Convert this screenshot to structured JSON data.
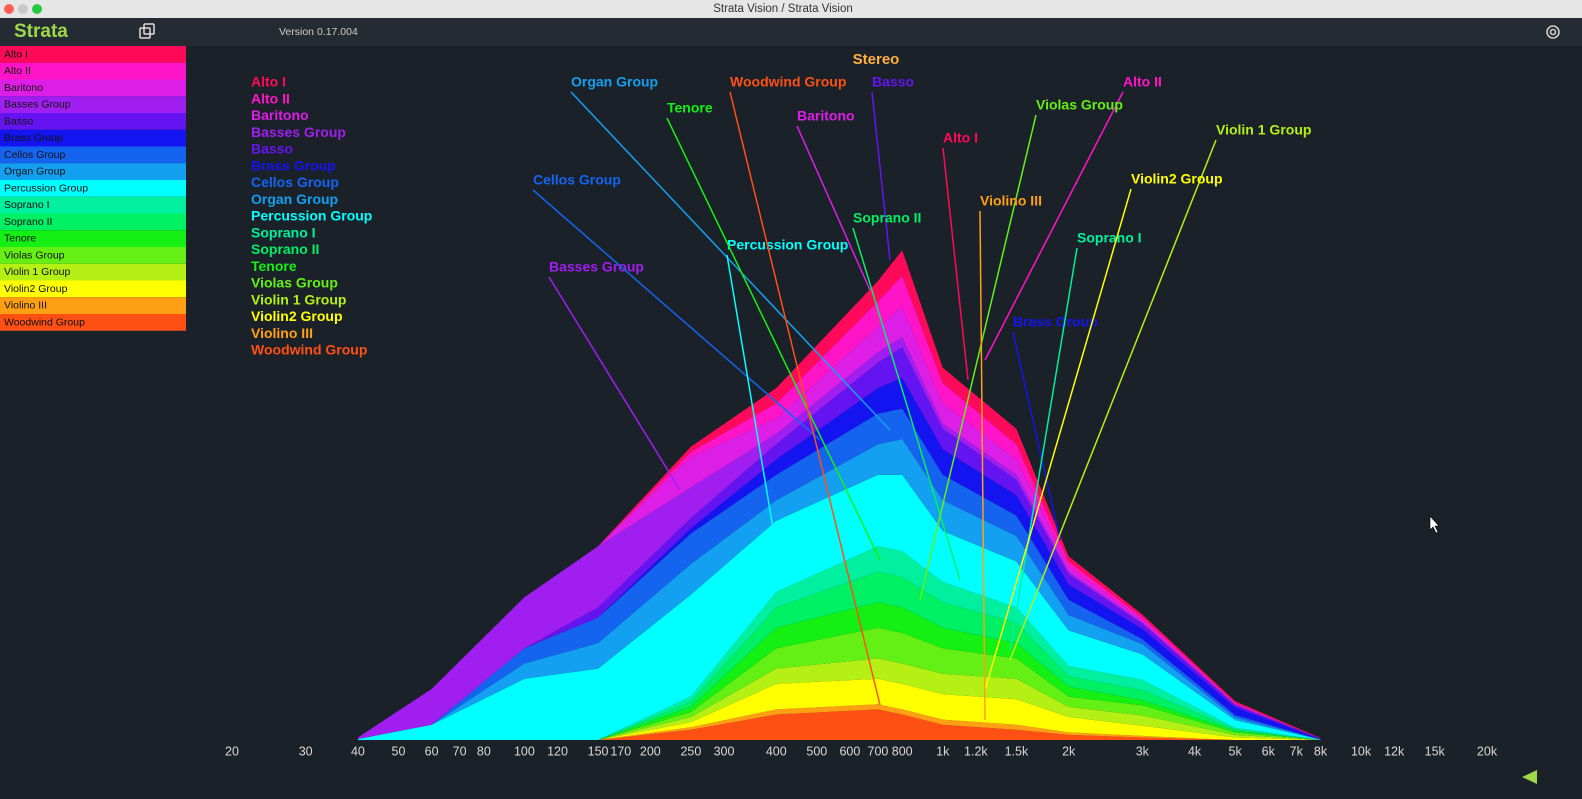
{
  "window_title": "Strata Vision / Strata Vision",
  "app_name": "Strata",
  "version": "Version 0.17.004",
  "chart_data": {
    "type": "stacked-area",
    "title": "Stereo",
    "log_x": true,
    "x": [
      40,
      60,
      100,
      150,
      250,
      400,
      700,
      800,
      1000,
      1500,
      2000,
      3000,
      5000,
      8000
    ],
    "xlim": [
      20,
      20000
    ],
    "xticks": [
      20,
      30,
      40,
      50,
      60,
      70,
      80,
      100,
      120,
      150,
      170,
      200,
      250,
      300,
      400,
      500,
      600,
      700,
      800,
      {
        "value": 1000,
        "label": "1k"
      },
      {
        "value": 1200,
        "label": "1.2k"
      },
      {
        "value": 1500,
        "label": "1.5k"
      },
      {
        "value": 2000,
        "label": "2k"
      },
      {
        "value": 3000,
        "label": "3k"
      },
      {
        "value": 4000,
        "label": "4k"
      },
      {
        "value": 5000,
        "label": "5k"
      },
      {
        "value": 6000,
        "label": "6k"
      },
      {
        "value": 7000,
        "label": "7k"
      },
      {
        "value": 8000,
        "label": "8k"
      },
      {
        "value": 10000,
        "label": "10k"
      },
      {
        "value": 12000,
        "label": "12k"
      },
      {
        "value": 15000,
        "label": "15k"
      },
      {
        "value": 20000,
        "label": "20k"
      }
    ],
    "ylim": [
      0,
      100
    ],
    "series": [
      {
        "name": "Alto I",
        "color": "#ff0a5a",
        "values": [
          0,
          0,
          0,
          0,
          1,
          3,
          4,
          5,
          3,
          3,
          1,
          0.5,
          0.3,
          0.1
        ]
      },
      {
        "name": "Alto II",
        "color": "#ff14c8",
        "values": [
          0,
          0,
          0,
          0,
          1,
          3,
          5,
          6,
          4,
          3,
          1,
          0.5,
          0.2,
          0
        ]
      },
      {
        "name": "Baritono",
        "color": "#dd1ee6",
        "values": [
          0,
          0,
          0,
          0,
          6,
          3,
          5,
          6,
          4,
          3,
          1,
          0.5,
          0.2,
          0
        ]
      },
      {
        "name": "Basses Group",
        "color": "#a01ef0",
        "values": [
          0.3,
          7,
          10,
          12,
          6,
          2,
          2,
          2,
          1,
          1,
          0.5,
          0.3,
          0,
          0
        ]
      },
      {
        "name": "Basso",
        "color": "#6414f0",
        "values": [
          0,
          0,
          0,
          2,
          2,
          3,
          5,
          6,
          4,
          3,
          2,
          1,
          0.5,
          0.1
        ]
      },
      {
        "name": "Brass Group",
        "color": "#1414f0",
        "values": [
          0,
          0,
          0,
          0,
          1,
          3,
          5,
          6,
          5,
          4,
          3,
          2,
          1.5,
          0.1
        ]
      },
      {
        "name": "Cellos Group",
        "color": "#1464f0",
        "values": [
          0,
          0,
          3,
          5,
          6,
          5,
          6,
          6,
          5,
          4,
          3,
          1,
          0.5,
          0
        ]
      },
      {
        "name": "Organ Group",
        "color": "#14a0f0",
        "values": [
          0,
          0,
          3,
          5,
          6,
          4,
          6,
          7,
          6,
          5,
          3,
          2,
          0.5,
          0
        ]
      },
      {
        "name": "Percussion Group",
        "color": "#00ffff",
        "values": [
          0.2,
          3,
          12,
          14,
          20,
          14,
          14,
          15,
          10,
          9,
          7,
          5,
          1.5,
          0.1
        ]
      },
      {
        "name": "Soprano I",
        "color": "#00f0a0",
        "values": [
          0,
          0,
          0,
          0,
          1,
          3,
          5,
          5,
          4,
          3,
          2,
          2,
          0.3,
          0
        ]
      },
      {
        "name": "Soprano II",
        "color": "#00f064",
        "values": [
          0,
          0,
          0,
          0,
          1,
          4,
          6,
          6,
          5,
          4,
          2,
          2,
          0.3,
          0
        ]
      },
      {
        "name": "Tenore",
        "color": "#14f014",
        "values": [
          0,
          0,
          0,
          0,
          1,
          4,
          5,
          5,
          4,
          3,
          2,
          1,
          0.3,
          0
        ]
      },
      {
        "name": "Violas Group",
        "color": "#64f014",
        "values": [
          0,
          0,
          0,
          0,
          1,
          4,
          6,
          6,
          5,
          4,
          2,
          2,
          0.5,
          0
        ]
      },
      {
        "name": "Violin 1 Group",
        "color": "#b4f014",
        "values": [
          0,
          0,
          0,
          0,
          1,
          3,
          4,
          4,
          4,
          4,
          2,
          2,
          0.5,
          0
        ]
      },
      {
        "name": "Violin2 Group",
        "color": "#ffff00",
        "values": [
          0,
          0,
          0,
          0,
          1,
          5,
          5,
          5,
          5,
          5,
          3,
          2,
          0.5,
          0
        ]
      },
      {
        "name": "Violino III",
        "color": "#ffa014",
        "values": [
          0,
          0,
          0,
          0,
          0.5,
          1,
          1,
          1,
          1,
          1,
          0.5,
          0.3,
          0,
          0
        ]
      },
      {
        "name": "Woodwind Group",
        "color": "#ff5014",
        "values": [
          0,
          0,
          0,
          0,
          2,
          5,
          6,
          5,
          3,
          2,
          1,
          0.5,
          0,
          0
        ]
      }
    ]
  }
}
